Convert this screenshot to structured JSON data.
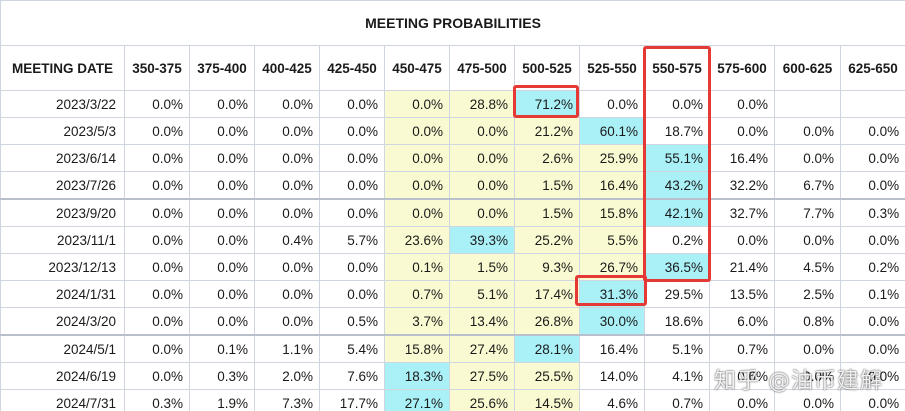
{
  "title": "MEETING PROBABILITIES",
  "columns": [
    "MEETING DATE",
    "350-375",
    "375-400",
    "400-425",
    "425-450",
    "450-475",
    "475-500",
    "500-525",
    "525-550",
    "550-575",
    "575-600",
    "600-625",
    "625-650"
  ],
  "rows": [
    {
      "date": "2023/3/22",
      "values": [
        "0.0%",
        "0.0%",
        "0.0%",
        "0.0%",
        "0.0%",
        "28.8%",
        "71.2%",
        "0.0%",
        "0.0%",
        "0.0%",
        "",
        ""
      ]
    },
    {
      "date": "2023/5/3",
      "values": [
        "0.0%",
        "0.0%",
        "0.0%",
        "0.0%",
        "0.0%",
        "0.0%",
        "21.2%",
        "60.1%",
        "18.7%",
        "0.0%",
        "0.0%",
        "0.0%"
      ]
    },
    {
      "date": "2023/6/14",
      "values": [
        "0.0%",
        "0.0%",
        "0.0%",
        "0.0%",
        "0.0%",
        "0.0%",
        "2.6%",
        "25.9%",
        "55.1%",
        "16.4%",
        "0.0%",
        "0.0%"
      ]
    },
    {
      "date": "2023/7/26",
      "values": [
        "0.0%",
        "0.0%",
        "0.0%",
        "0.0%",
        "0.0%",
        "0.0%",
        "1.5%",
        "16.4%",
        "43.2%",
        "32.2%",
        "6.7%",
        "0.0%"
      ]
    },
    {
      "date": "2023/9/20",
      "values": [
        "0.0%",
        "0.0%",
        "0.0%",
        "0.0%",
        "0.0%",
        "0.0%",
        "1.5%",
        "15.8%",
        "42.1%",
        "32.7%",
        "7.7%",
        "0.3%"
      ]
    },
    {
      "date": "2023/11/1",
      "values": [
        "0.0%",
        "0.0%",
        "0.4%",
        "5.7%",
        "23.6%",
        "39.3%",
        "25.2%",
        "5.5%",
        "0.2%",
        "0.0%",
        "0.0%",
        "0.0%"
      ]
    },
    {
      "date": "2023/12/13",
      "values": [
        "0.0%",
        "0.0%",
        "0.0%",
        "0.0%",
        "0.1%",
        "1.5%",
        "9.3%",
        "26.7%",
        "36.5%",
        "21.4%",
        "4.5%",
        "0.2%"
      ]
    },
    {
      "date": "2024/1/31",
      "values": [
        "0.0%",
        "0.0%",
        "0.0%",
        "0.0%",
        "0.7%",
        "5.1%",
        "17.4%",
        "31.3%",
        "29.5%",
        "13.5%",
        "2.5%",
        "0.1%"
      ]
    },
    {
      "date": "2024/3/20",
      "values": [
        "0.0%",
        "0.0%",
        "0.0%",
        "0.5%",
        "3.7%",
        "13.4%",
        "26.8%",
        "30.0%",
        "18.6%",
        "6.0%",
        "0.8%",
        "0.0%"
      ]
    },
    {
      "date": "2024/5/1",
      "values": [
        "0.0%",
        "0.1%",
        "1.1%",
        "5.4%",
        "15.8%",
        "27.4%",
        "28.1%",
        "16.4%",
        "5.1%",
        "0.7%",
        "0.0%",
        "0.0%"
      ]
    },
    {
      "date": "2024/6/19",
      "values": [
        "0.0%",
        "0.3%",
        "2.0%",
        "7.6%",
        "18.3%",
        "27.5%",
        "25.5%",
        "14.0%",
        "4.1%",
        "0.6%",
        "0.0%",
        "0.0%"
      ]
    },
    {
      "date": "2024/7/31",
      "values": [
        "0.3%",
        "1.9%",
        "7.3%",
        "17.7%",
        "27.1%",
        "25.6%",
        "14.5%",
        "4.6%",
        "0.7%",
        "0.0%",
        "0.0%",
        "0.0%"
      ]
    }
  ],
  "cell_styles": [
    [
      "w",
      "w",
      "w",
      "w",
      "y",
      "y",
      "c",
      "w",
      "w",
      "w",
      "b",
      "b"
    ],
    [
      "w",
      "w",
      "w",
      "w",
      "y",
      "y",
      "y",
      "c",
      "w",
      "w",
      "w",
      "w"
    ],
    [
      "w",
      "w",
      "w",
      "w",
      "y",
      "y",
      "y",
      "y",
      "c",
      "w",
      "w",
      "w"
    ],
    [
      "w",
      "w",
      "w",
      "w",
      "y",
      "y",
      "y",
      "y",
      "c",
      "w",
      "w",
      "w"
    ],
    [
      "w",
      "w",
      "w",
      "w",
      "y",
      "y",
      "y",
      "y",
      "c",
      "w",
      "w",
      "w"
    ],
    [
      "w",
      "w",
      "w",
      "w",
      "y",
      "c",
      "y",
      "y",
      "w",
      "w",
      "w",
      "w"
    ],
    [
      "w",
      "w",
      "w",
      "w",
      "y",
      "y",
      "y",
      "y",
      "c",
      "w",
      "w",
      "w"
    ],
    [
      "w",
      "w",
      "w",
      "w",
      "y",
      "y",
      "y",
      "c",
      "w",
      "w",
      "w",
      "w"
    ],
    [
      "w",
      "w",
      "w",
      "w",
      "y",
      "y",
      "y",
      "c",
      "w",
      "w",
      "w",
      "w"
    ],
    [
      "w",
      "w",
      "w",
      "w",
      "y",
      "y",
      "c",
      "w",
      "w",
      "w",
      "w",
      "w"
    ],
    [
      "w",
      "w",
      "w",
      "w",
      "c",
      "y",
      "y",
      "w",
      "w",
      "w",
      "w",
      "w"
    ],
    [
      "w",
      "w",
      "w",
      "w",
      "c",
      "y",
      "y",
      "w",
      "w",
      "w",
      "w",
      "w"
    ]
  ],
  "separator_rows": [
    4,
    9
  ],
  "colors": {
    "highlight_yellow": "#fafad2",
    "highlight_cyan": "#aaf0f7",
    "annotation_red": "#e53935"
  },
  "watermark": "知乎 @油币建解"
}
